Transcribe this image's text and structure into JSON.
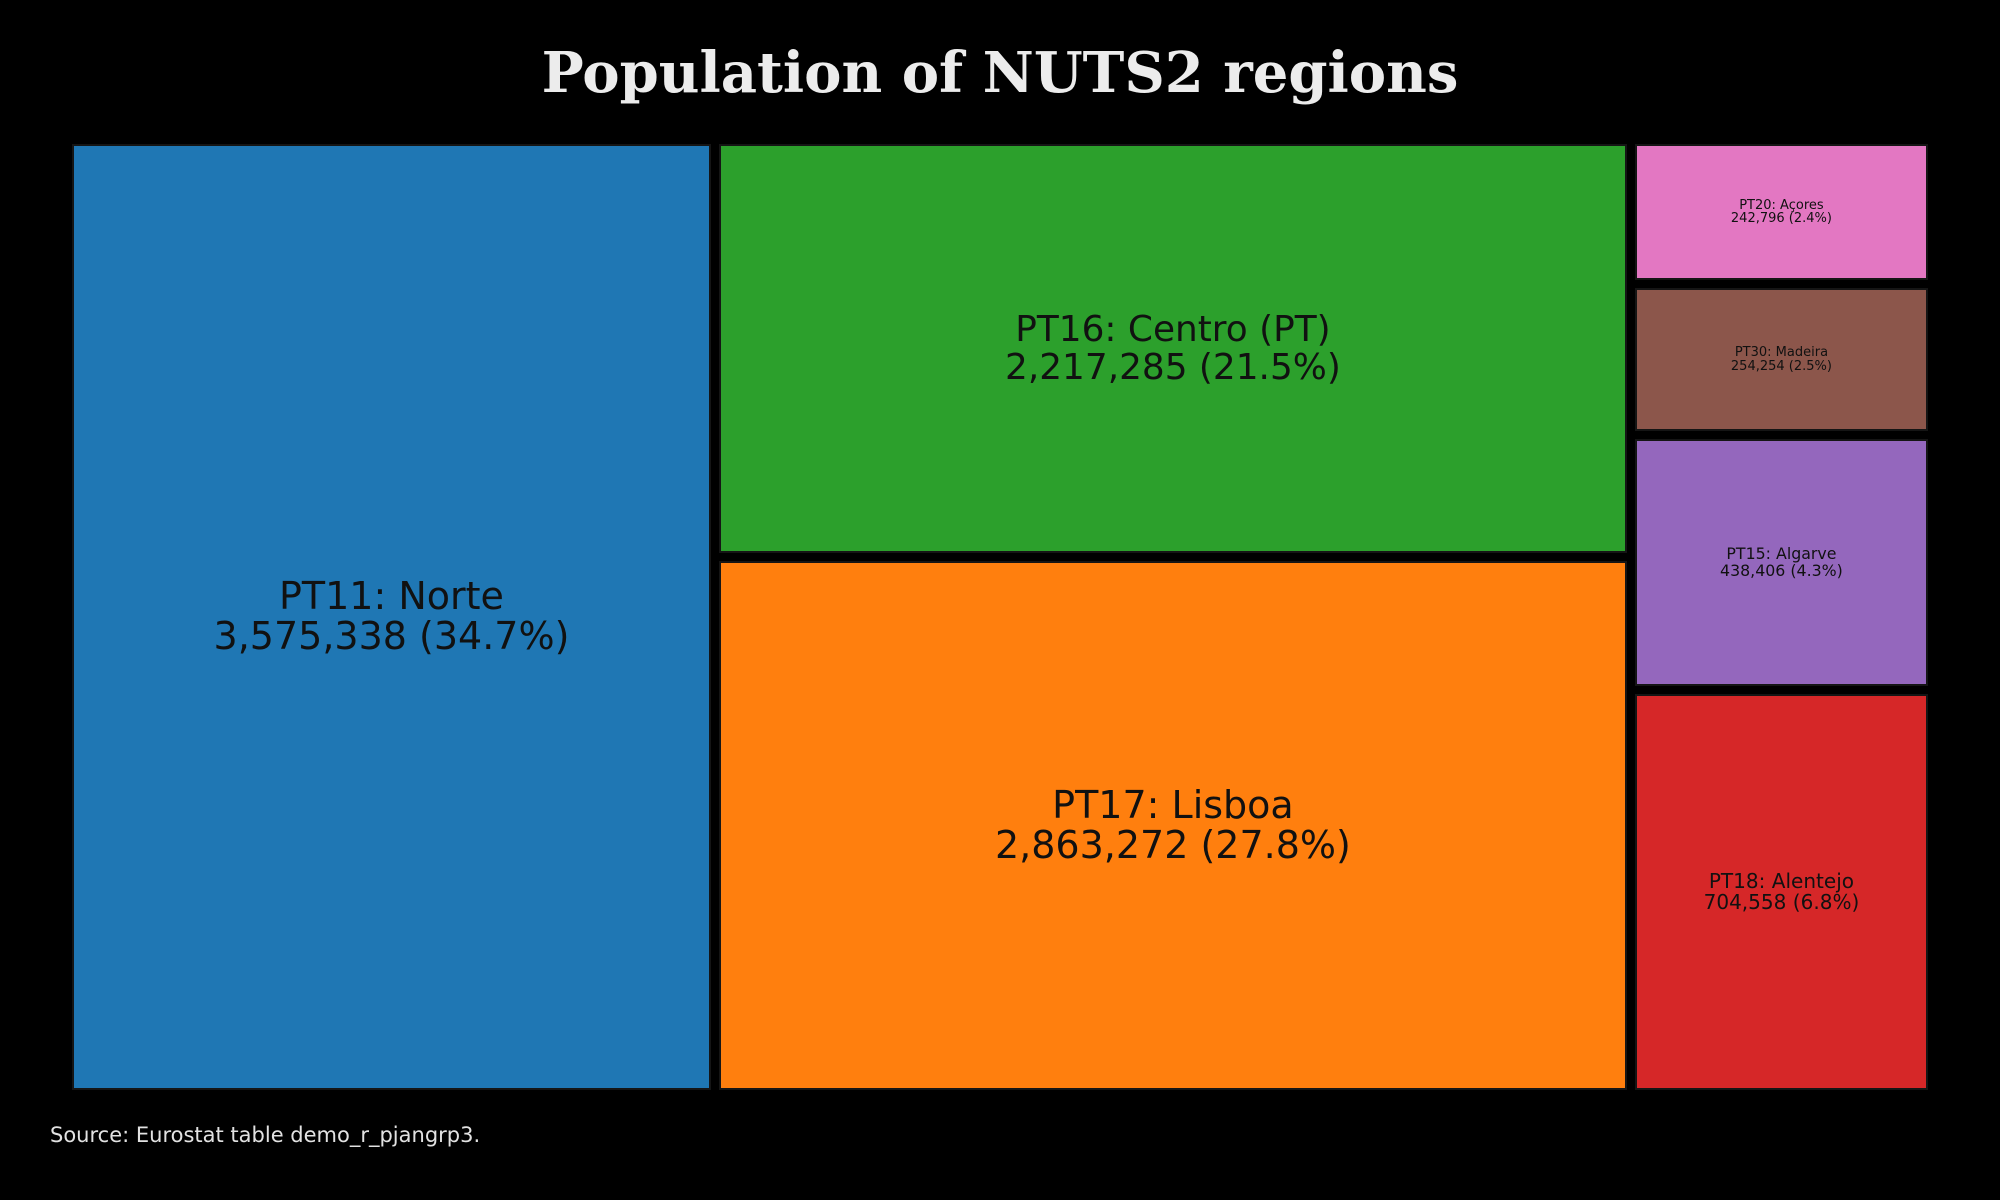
{
  "chart_data": {
    "type": "treemap",
    "title": "Population of NUTS2 regions",
    "source": "Source: Eurostat table demo_r_pjangrp3.",
    "items": [
      {
        "id": "norte",
        "label": "PT11: Norte",
        "value": 3575338,
        "value_text": "3,575,338 (34.7%)",
        "share_pct": 34.7,
        "color": "#1f77b4"
      },
      {
        "id": "centro",
        "label": "PT16: Centro (PT)",
        "value": 2217285,
        "value_text": "2,217,285 (21.5%)",
        "share_pct": 21.5,
        "color": "#2ca02c"
      },
      {
        "id": "lisboa",
        "label": "PT17: Lisboa",
        "value": 2863272,
        "value_text": "2,863,272 (27.8%)",
        "share_pct": 27.8,
        "color": "#ff7f0e"
      },
      {
        "id": "acores",
        "label": "PT20: Açores",
        "value": 242796,
        "value_text": "242,796 (2.4%)",
        "share_pct": 2.4,
        "color": "#e377c2"
      },
      {
        "id": "madeira",
        "label": "PT30: Madeira",
        "value": 254254,
        "value_text": "254,254 (2.5%)",
        "share_pct": 2.5,
        "color": "#8c564b"
      },
      {
        "id": "algarve",
        "label": "PT15: Algarve",
        "value": 438406,
        "value_text": "438,406 (4.3%)",
        "share_pct": 4.3,
        "color": "#9467bd"
      },
      {
        "id": "alentejo",
        "label": "PT18: Alentejo",
        "value": 704558,
        "value_text": "704,558 (6.8%)",
        "share_pct": 6.8,
        "color": "#d62728"
      }
    ]
  }
}
